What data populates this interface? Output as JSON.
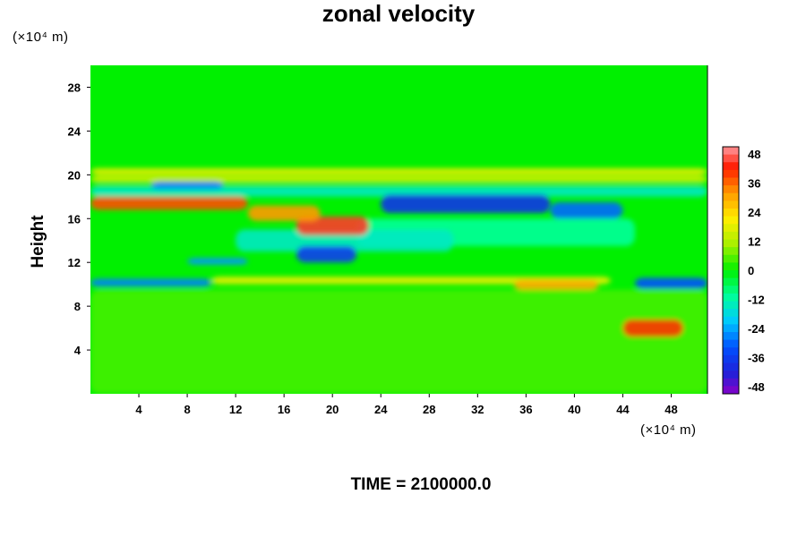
{
  "chart_data": {
    "type": "heatmap",
    "title": "zonal velocity",
    "xlabel": "",
    "ylabel": "Height",
    "x_unit": "(×10⁴ m)",
    "y_unit": "(×10⁴ m)",
    "xlim": [
      0,
      51
    ],
    "ylim": [
      0,
      30
    ],
    "x_ticks": [
      4,
      8,
      12,
      16,
      20,
      24,
      28,
      32,
      36,
      40,
      44,
      48
    ],
    "y_ticks": [
      4,
      8,
      12,
      16,
      20,
      24,
      28
    ],
    "colorbar": {
      "min": -48,
      "max": 48,
      "ticks": [
        48,
        36,
        24,
        12,
        0,
        -12,
        -24,
        -36,
        -48
      ]
    },
    "footer": "TIME = 2100000.0",
    "features": [
      {
        "x0": 0,
        "x1": 13,
        "y0": 16.8,
        "y1": 18.0,
        "value": 36
      },
      {
        "x0": 13,
        "x1": 19,
        "y0": 15.8,
        "y1": 17.2,
        "value": 30
      },
      {
        "x0": 17,
        "x1": 23,
        "y0": 14.5,
        "y1": 16.2,
        "value": 42
      },
      {
        "x0": 0,
        "x1": 51,
        "y0": 20.0,
        "y1": 20.6,
        "value": 18
      },
      {
        "x0": 0,
        "x1": 51,
        "y0": 19.3,
        "y1": 19.9,
        "value": 16
      },
      {
        "x0": 10,
        "x1": 43,
        "y0": 10.0,
        "y1": 10.7,
        "value": 18
      },
      {
        "x0": 35,
        "x1": 42,
        "y0": 9.5,
        "y1": 10.4,
        "value": 28
      },
      {
        "x0": 44,
        "x1": 49,
        "y0": 5.2,
        "y1": 6.8,
        "value": 38
      },
      {
        "x0": 24,
        "x1": 38,
        "y0": 16.5,
        "y1": 18.2,
        "value": -36
      },
      {
        "x0": 38,
        "x1": 44,
        "y0": 16.0,
        "y1": 17.5,
        "value": -28
      },
      {
        "x0": 17,
        "x1": 22,
        "y0": 12.0,
        "y1": 13.5,
        "value": -34
      },
      {
        "x0": 0,
        "x1": 10,
        "y0": 9.8,
        "y1": 10.5,
        "value": -26
      },
      {
        "x0": 45,
        "x1": 51,
        "y0": 9.6,
        "y1": 10.6,
        "value": -30
      },
      {
        "x0": 5,
        "x1": 11,
        "y0": 18.7,
        "y1": 19.4,
        "value": -26
      },
      {
        "x0": 8,
        "x1": 13,
        "y0": 11.8,
        "y1": 12.4,
        "value": -24
      },
      {
        "x0": 0,
        "x1": 51,
        "y0": 18.0,
        "y1": 19.0,
        "value": -14
      },
      {
        "x0": 12,
        "x1": 30,
        "y0": 13.0,
        "y1": 15.0,
        "value": -14
      },
      {
        "x0": 22,
        "x1": 45,
        "y0": 13.5,
        "y1": 16.0,
        "value": -10
      },
      {
        "x0": 0,
        "x1": 51,
        "y0": 0,
        "y1": 9.5,
        "value": 4
      }
    ]
  }
}
